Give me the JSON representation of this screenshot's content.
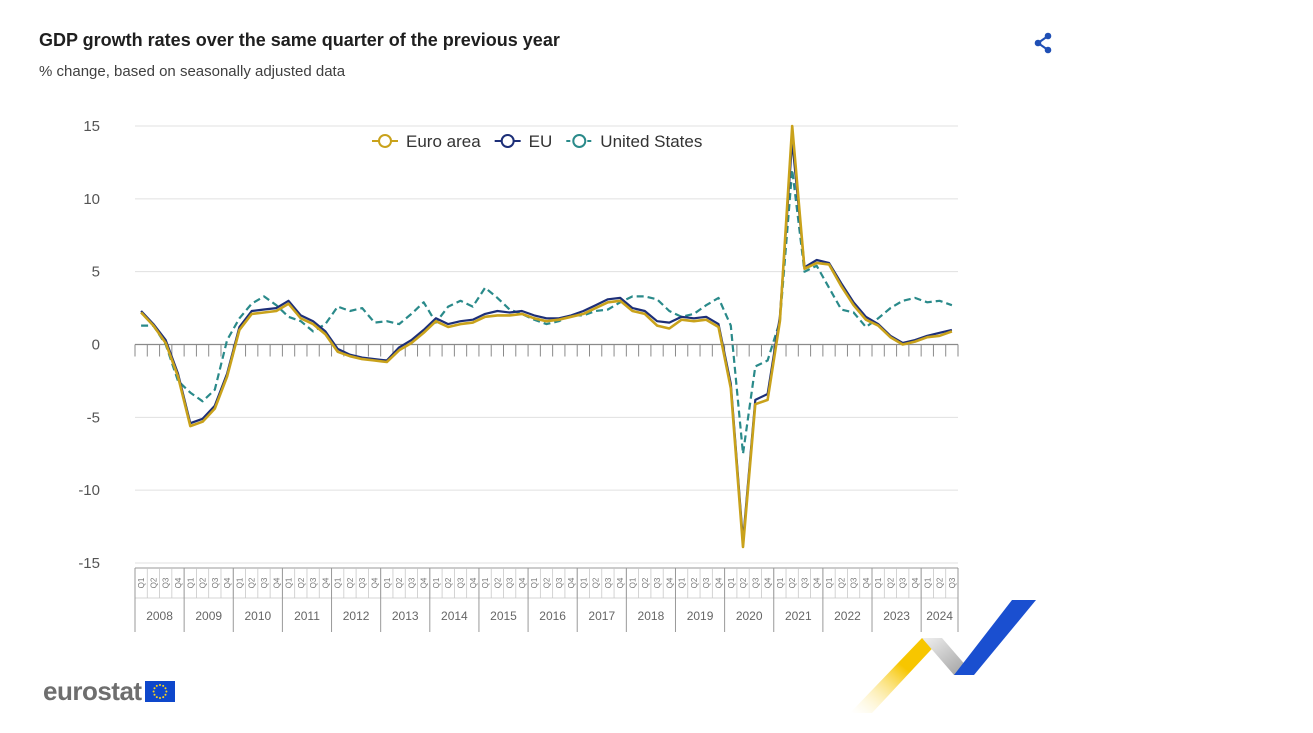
{
  "header": {
    "title": "GDP growth rates over the same quarter of the previous year",
    "subtitle": "% change, based on seasonally adjusted data",
    "share_icon": "share-icon"
  },
  "brand": {
    "logo_text": "eurostat",
    "flag_color": "#0e47cb",
    "flag_icon": "eu-flag-icon"
  },
  "colors": {
    "euro_area": "#c9a21b",
    "eu": "#1d2f78",
    "us": "#2a8a8a",
    "grid": "#e0e0e0",
    "axis_text": "#555555"
  },
  "chart_data": {
    "type": "line",
    "title": "GDP growth rates over the same quarter of the previous year",
    "subtitle": "% change, based on seasonally adjusted data",
    "ylim": [
      -15,
      15
    ],
    "yticks": [
      15,
      10,
      5,
      0,
      -5,
      -10,
      -15
    ],
    "grid": true,
    "legend_position": "top-center",
    "quarter_labels": [
      "Q1",
      "Q2",
      "Q3",
      "Q4"
    ],
    "years": [
      "2008",
      "2009",
      "2010",
      "2011",
      "2012",
      "2013",
      "2014",
      "2015",
      "2016",
      "2017",
      "2018",
      "2019",
      "2020",
      "2021",
      "2022",
      "2023",
      "2024"
    ],
    "x_start": "2008-Q1",
    "x_end": "2024-Q3",
    "series": [
      {
        "name": "Euro area",
        "style": "solid",
        "values": [
          2.2,
          1.3,
          0.1,
          -2.2,
          -5.6,
          -5.3,
          -4.4,
          -2.2,
          1.0,
          2.1,
          2.2,
          2.3,
          2.8,
          1.8,
          1.4,
          0.7,
          -0.5,
          -0.8,
          -1.0,
          -1.1,
          -1.2,
          -0.4,
          0.1,
          0.8,
          1.6,
          1.2,
          1.4,
          1.5,
          1.9,
          2.0,
          2.0,
          2.1,
          1.8,
          1.6,
          1.7,
          1.9,
          2.1,
          2.5,
          2.9,
          3.0,
          2.3,
          2.1,
          1.3,
          1.1,
          1.7,
          1.6,
          1.7,
          1.2,
          -3.0,
          -13.9,
          -4.1,
          -3.8,
          1.6,
          15.0,
          5.2,
          5.6,
          5.5,
          4.0,
          2.7,
          1.7,
          1.3,
          0.5,
          0.0,
          0.2,
          0.5,
          0.6,
          0.9
        ]
      },
      {
        "name": "EU",
        "style": "solid",
        "values": [
          2.3,
          1.4,
          0.3,
          -2.0,
          -5.4,
          -5.1,
          -4.2,
          -2.0,
          1.2,
          2.3,
          2.4,
          2.5,
          3.0,
          2.0,
          1.6,
          0.9,
          -0.3,
          -0.7,
          -0.9,
          -1.0,
          -1.1,
          -0.2,
          0.3,
          1.0,
          1.8,
          1.4,
          1.6,
          1.7,
          2.1,
          2.3,
          2.2,
          2.3,
          2.0,
          1.8,
          1.8,
          2.0,
          2.3,
          2.7,
          3.1,
          3.2,
          2.5,
          2.3,
          1.6,
          1.5,
          1.9,
          1.8,
          1.9,
          1.4,
          -2.7,
          -13.5,
          -3.8,
          -3.4,
          1.9,
          14.0,
          5.3,
          5.8,
          5.6,
          4.2,
          2.9,
          1.9,
          1.4,
          0.6,
          0.1,
          0.3,
          0.6,
          0.8,
          1.0
        ]
      },
      {
        "name": "United States",
        "style": "dashed",
        "values": [
          1.3,
          1.3,
          0.0,
          -2.5,
          -3.3,
          -3.9,
          -3.1,
          0.3,
          1.8,
          2.8,
          3.3,
          2.7,
          1.9,
          1.6,
          0.9,
          1.4,
          2.6,
          2.3,
          2.5,
          1.5,
          1.6,
          1.4,
          2.1,
          2.9,
          1.5,
          2.6,
          3.0,
          2.6,
          3.9,
          3.2,
          2.4,
          2.1,
          1.7,
          1.4,
          1.6,
          2.0,
          2.0,
          2.3,
          2.4,
          2.9,
          3.3,
          3.3,
          3.1,
          2.3,
          1.9,
          2.1,
          2.7,
          3.2,
          1.3,
          -7.5,
          -1.5,
          -1.1,
          1.6,
          12.0,
          5.0,
          5.4,
          3.9,
          2.4,
          2.2,
          1.2,
          1.8,
          2.5,
          3.0,
          3.2,
          2.9,
          3.0,
          2.7
        ]
      }
    ]
  }
}
